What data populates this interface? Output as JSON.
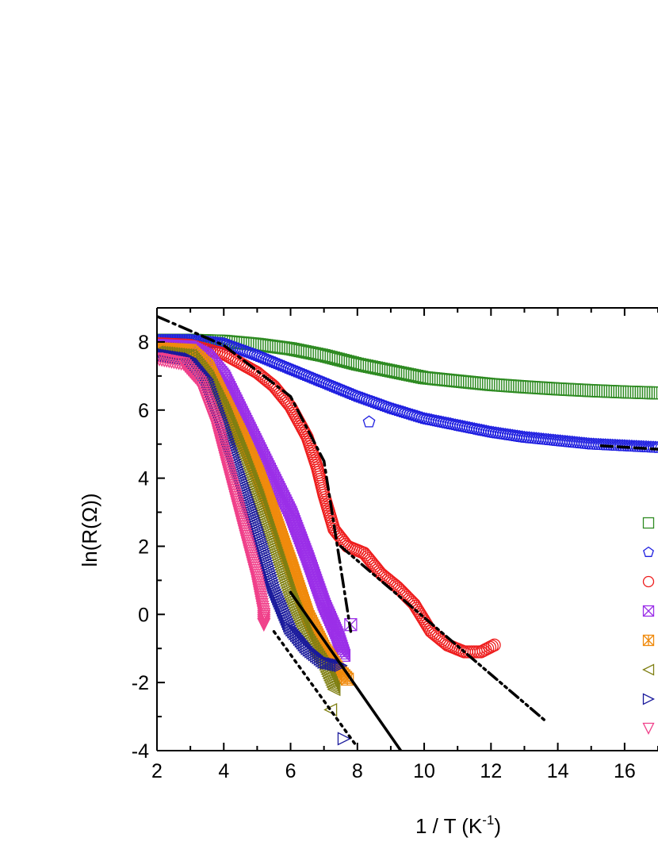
{
  "chart_data": {
    "type": "scatter",
    "xlabel": "1 / T (K",
    "xlabel_sup": "-1",
    "xlabel_end": ")",
    "ylabel": "ln(R(Ω))",
    "xlim": [
      2,
      17
    ],
    "ylim": [
      -4,
      9
    ],
    "x_ticks": [
      2,
      4,
      6,
      8,
      10,
      12,
      14,
      16
    ],
    "x_tick_labels": [
      "2",
      "4",
      "6",
      "8",
      "10",
      "12",
      "14",
      "16"
    ],
    "y_ticks": [
      -4,
      -2,
      0,
      2,
      4,
      6,
      8
    ],
    "y_tick_labels": [
      "-4",
      "-2",
      "0",
      "2",
      "4",
      "6",
      "8"
    ],
    "grid": false,
    "legend": {
      "placement": "right (clipped)",
      "entries": [
        {
          "marker": "square",
          "color": "#2e8b22"
        },
        {
          "marker": "pentagon",
          "color": "#1f1fe0"
        },
        {
          "marker": "circle",
          "color": "#ee1c1c"
        },
        {
          "marker": "crossed-square",
          "color": "#9b2fe8"
        },
        {
          "marker": "asterisk-square",
          "color": "#f08a0c"
        },
        {
          "marker": "triangle-left",
          "color": "#7f7f12"
        },
        {
          "marker": "triangle-right",
          "color": "#1a1a9c"
        },
        {
          "marker": "triangle-down",
          "color": "#f0408a"
        }
      ]
    },
    "series": [
      {
        "marker": "square",
        "color": "#2e8b22",
        "points": [
          [
            2.0,
            8.05
          ],
          [
            3.0,
            8.05
          ],
          [
            4.0,
            8.02
          ],
          [
            5.0,
            7.93
          ],
          [
            6.0,
            7.8
          ],
          [
            7.0,
            7.6
          ],
          [
            8.0,
            7.35
          ],
          [
            9.0,
            7.15
          ],
          [
            10.0,
            6.95
          ],
          [
            11.0,
            6.85
          ],
          [
            12.0,
            6.75
          ],
          [
            13.0,
            6.68
          ],
          [
            14.0,
            6.62
          ],
          [
            15.0,
            6.57
          ],
          [
            16.0,
            6.53
          ],
          [
            17.0,
            6.5
          ]
        ]
      },
      {
        "marker": "pentagon",
        "color": "#1f1fe0",
        "points": [
          [
            2.0,
            8.05
          ],
          [
            3.0,
            8.05
          ],
          [
            4.0,
            7.95
          ],
          [
            5.0,
            7.6
          ],
          [
            6.0,
            7.2
          ],
          [
            7.0,
            6.8
          ],
          [
            8.0,
            6.4
          ],
          [
            9.0,
            6.05
          ],
          [
            10.0,
            5.75
          ],
          [
            11.0,
            5.55
          ],
          [
            12.0,
            5.35
          ],
          [
            13.0,
            5.2
          ],
          [
            14.0,
            5.1
          ],
          [
            15.0,
            5.0
          ],
          [
            16.0,
            4.95
          ],
          [
            17.0,
            4.9
          ]
        ],
        "outliers": [
          [
            8.35,
            5.65
          ]
        ]
      },
      {
        "marker": "circle",
        "color": "#ee1c1c",
        "points": [
          [
            2.0,
            7.95
          ],
          [
            3.0,
            7.9
          ],
          [
            4.0,
            7.65
          ],
          [
            5.0,
            7.1
          ],
          [
            5.5,
            6.7
          ],
          [
            6.0,
            6.1
          ],
          [
            6.5,
            5.2
          ],
          [
            6.8,
            4.3
          ],
          [
            7.0,
            3.5
          ],
          [
            7.3,
            2.5
          ],
          [
            7.7,
            2.0
          ],
          [
            8.2,
            1.8
          ],
          [
            8.7,
            1.2
          ],
          [
            9.2,
            0.8
          ],
          [
            9.7,
            0.3
          ],
          [
            10.2,
            -0.5
          ],
          [
            10.7,
            -0.9
          ],
          [
            11.2,
            -1.1
          ],
          [
            11.7,
            -1.1
          ],
          [
            12.1,
            -0.9
          ]
        ]
      },
      {
        "marker": "crossed-square",
        "color": "#9b2fe8",
        "points": [
          [
            2.0,
            7.9
          ],
          [
            3.0,
            7.85
          ],
          [
            3.5,
            7.6
          ],
          [
            4.0,
            7.0
          ],
          [
            4.5,
            6.0
          ],
          [
            5.0,
            5.0
          ],
          [
            5.5,
            4.0
          ],
          [
            6.0,
            3.0
          ],
          [
            6.5,
            1.7
          ],
          [
            7.0,
            0.3
          ],
          [
            7.4,
            -0.6
          ],
          [
            7.6,
            -1.2
          ]
        ],
        "outliers": [
          [
            7.8,
            -0.3
          ]
        ]
      },
      {
        "marker": "asterisk-square",
        "color": "#f08a0c",
        "points": [
          [
            2.0,
            7.8
          ],
          [
            3.0,
            7.75
          ],
          [
            3.5,
            7.3
          ],
          [
            4.0,
            6.3
          ],
          [
            4.5,
            5.3
          ],
          [
            5.0,
            4.2
          ],
          [
            5.5,
            2.9
          ],
          [
            6.0,
            1.5
          ],
          [
            6.5,
            0.0
          ],
          [
            7.0,
            -1.0
          ],
          [
            7.4,
            -1.6
          ],
          [
            7.7,
            -1.9
          ]
        ]
      },
      {
        "marker": "triangle-left",
        "color": "#7f7f12",
        "points": [
          [
            2.0,
            7.7
          ],
          [
            3.0,
            7.6
          ],
          [
            3.5,
            7.0
          ],
          [
            4.0,
            6.0
          ],
          [
            4.5,
            4.8
          ],
          [
            5.0,
            3.5
          ],
          [
            5.5,
            2.0
          ],
          [
            6.0,
            0.5
          ],
          [
            6.5,
            -0.7
          ],
          [
            7.0,
            -1.5
          ],
          [
            7.3,
            -2.2
          ]
        ],
        "outliers": [
          [
            7.2,
            -2.8
          ]
        ]
      },
      {
        "marker": "triangle-right",
        "color": "#1a1a9c",
        "points": [
          [
            2.0,
            7.65
          ],
          [
            3.0,
            7.5
          ],
          [
            3.5,
            6.9
          ],
          [
            4.0,
            5.5
          ],
          [
            4.5,
            4.0
          ],
          [
            5.0,
            2.5
          ],
          [
            5.5,
            0.8
          ],
          [
            6.0,
            -0.4
          ],
          [
            6.5,
            -1.0
          ],
          [
            7.0,
            -1.4
          ],
          [
            7.5,
            -1.5
          ]
        ],
        "outliers": [
          [
            7.6,
            -3.65
          ]
        ]
      },
      {
        "marker": "triangle-down",
        "color": "#f0408a",
        "points": [
          [
            2.0,
            7.5
          ],
          [
            2.8,
            7.35
          ],
          [
            3.3,
            6.8
          ],
          [
            3.8,
            5.5
          ],
          [
            4.2,
            4.0
          ],
          [
            4.6,
            2.5
          ],
          [
            5.0,
            1.0
          ],
          [
            5.2,
            0.0
          ],
          [
            5.2,
            -0.3
          ]
        ]
      }
    ],
    "fit_lines": [
      {
        "style": "dash-dot",
        "points": [
          [
            2.0,
            8.75
          ],
          [
            4.0,
            7.9
          ],
          [
            6.0,
            6.4
          ],
          [
            7.0,
            4.5
          ],
          [
            7.8,
            -0.5
          ]
        ]
      },
      {
        "style": "dash-dot-dot",
        "points": [
          [
            7.5,
            2.0
          ],
          [
            13.6,
            -3.1
          ]
        ]
      },
      {
        "style": "dashed",
        "points": [
          [
            15.3,
            4.95
          ],
          [
            17.0,
            4.85
          ]
        ]
      },
      {
        "style": "solid",
        "points": [
          [
            6.0,
            0.65
          ],
          [
            9.3,
            -4.0
          ]
        ]
      },
      {
        "style": "dotted",
        "points": [
          [
            5.5,
            -0.5
          ],
          [
            8.0,
            -3.9
          ]
        ]
      }
    ]
  }
}
